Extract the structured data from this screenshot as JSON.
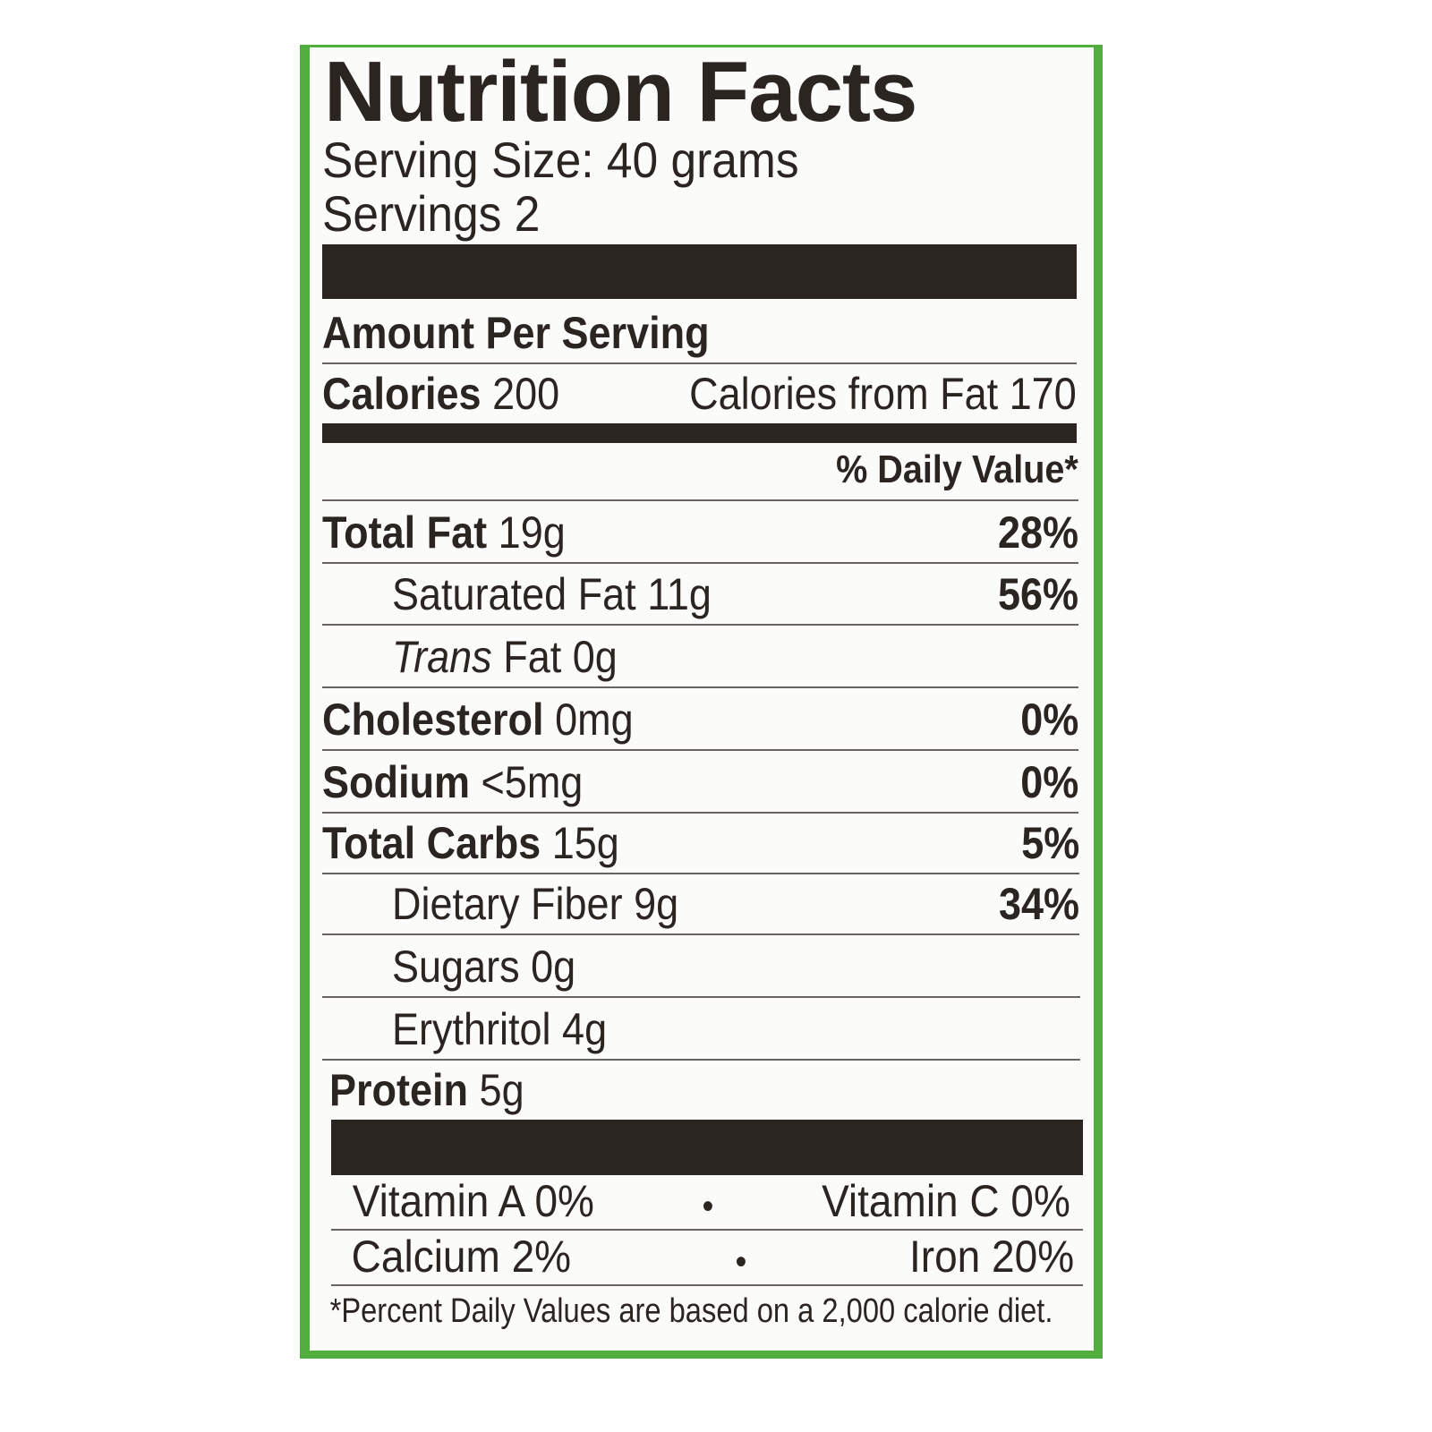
{
  "colors": {
    "border": "#4fae3c",
    "ink": "#2b2521",
    "background": "#fbfbfa"
  },
  "title": "Nutrition Facts",
  "serving_size": "Serving Size: 40 grams",
  "servings": "Servings 2",
  "amount_per_serving": "Amount Per Serving",
  "calories": {
    "label": "Calories",
    "value": "200",
    "from_fat": "Calories from Fat 170"
  },
  "daily_value_header": "% Daily Value*",
  "nutrients": [
    {
      "name": "Total Fat",
      "amount": "19g",
      "dv": "28%"
    },
    {
      "name": "Saturated Fat",
      "amount": "11g",
      "dv": "56%"
    },
    {
      "name": "Trans",
      "name_rest": "Fat",
      "amount": "0g",
      "dv": ""
    },
    {
      "name": "Cholesterol",
      "amount": "0mg",
      "dv": "0%"
    },
    {
      "name": "Sodium",
      "amount": "<5mg",
      "dv": "0%"
    },
    {
      "name": "Total Carbs",
      "amount": "15g",
      "dv": "5%"
    },
    {
      "name": "Dietary Fiber",
      "amount": "9g",
      "dv": "34%"
    },
    {
      "name": "Sugars",
      "amount": "0g",
      "dv": ""
    },
    {
      "name": "Erythritol",
      "amount": "4g",
      "dv": ""
    },
    {
      "name": "Protein",
      "amount": "5g",
      "dv": ""
    }
  ],
  "vitamins": [
    {
      "left": "Vitamin A 0%",
      "right": "Vitamin C 0%"
    },
    {
      "left": "Calcium 2%",
      "right": "Iron 20%"
    }
  ],
  "bullet": "•",
  "footnote": "*Percent Daily Values are based on a 2,000 calorie diet."
}
